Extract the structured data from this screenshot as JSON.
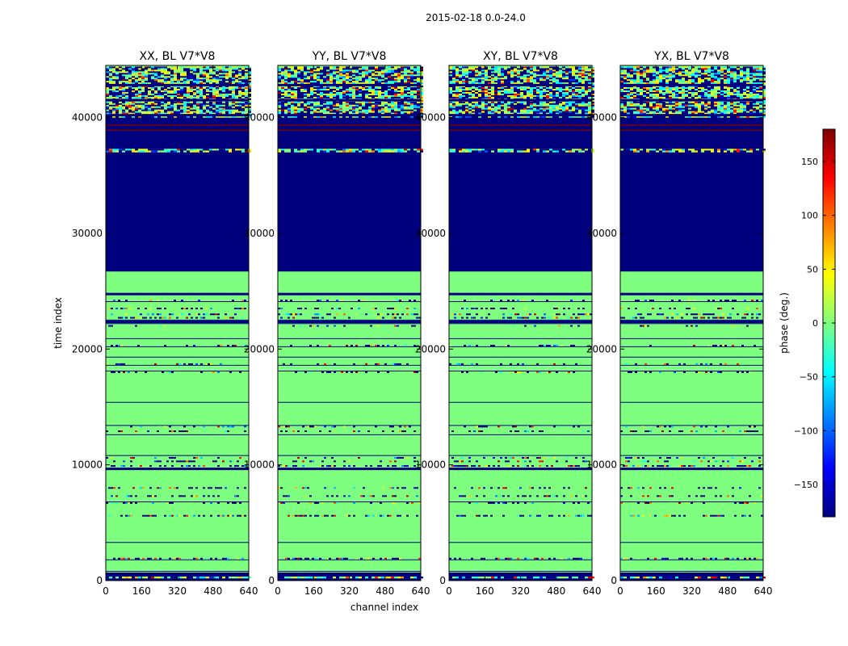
{
  "figure_title": "2015-02-18 0.0-24.0",
  "chart_data": {
    "type": "heatmap",
    "title": "2015-02-18 0.0-24.0",
    "xlabel": "channel index",
    "ylabel": "time index",
    "xlim": [
      0,
      640
    ],
    "ylim": [
      0,
      44500
    ],
    "xticks": [
      0,
      160,
      320,
      480,
      640
    ],
    "yticks": [
      0,
      10000,
      20000,
      30000,
      40000
    ],
    "panels": [
      {
        "title": "XX, BL V7*V8"
      },
      {
        "title": "YY, BL V7*V8"
      },
      {
        "title": "XY, BL V7*V8"
      },
      {
        "title": "YX, BL V7*V8"
      }
    ],
    "colorbar": {
      "label": "phase (deg.)",
      "range": [
        -180,
        180
      ],
      "ticks": [
        -150,
        -100,
        -50,
        0,
        50,
        100,
        150
      ],
      "tick_labels": [
        "−150",
        "−100",
        "−50",
        "0",
        "50",
        "100",
        "150"
      ],
      "colormap": "jet",
      "colors": [
        "#00007f",
        "#0000ff",
        "#0080ff",
        "#00ffff",
        "#7fff7f",
        "#ffff00",
        "#ff8000",
        "#ff0000",
        "#7f0000"
      ]
    },
    "bands": [
      {
        "from": 0,
        "to": 200,
        "phase": -180
      },
      {
        "from": 200,
        "to": 350,
        "phase": "noise"
      },
      {
        "from": 350,
        "to": 700,
        "phase": -180
      },
      {
        "from": 700,
        "to": 26700,
        "phase": 0
      },
      {
        "from": 26700,
        "to": 37000,
        "phase": -180
      },
      {
        "from": 37000,
        "to": 37300,
        "phase": "noise"
      },
      {
        "from": 37300,
        "to": 40000,
        "phase": -180
      },
      {
        "from": 38850,
        "to": 38950,
        "phase": 180
      },
      {
        "from": 39300,
        "to": 39400,
        "phase": 180
      },
      {
        "from": 40000,
        "to": 44400,
        "phase": "noise"
      }
    ],
    "separator_lines": [
      800,
      1800,
      3300,
      6800,
      9700,
      10800,
      12600,
      13400,
      15400,
      18100,
      18600,
      19300,
      20200,
      20900,
      22200,
      22500,
      24100,
      24800
    ],
    "dark_rows": [
      24750,
      22350,
      9650,
      40200,
      41500,
      42800
    ],
    "noisy_rows": [
      {
        "t": 1900,
        "density": 0.5
      },
      {
        "t": 5600,
        "density": 0.5
      },
      {
        "t": 6700,
        "density": 0.3
      },
      {
        "t": 7300,
        "density": 0.4
      },
      {
        "t": 8000,
        "density": 0.3
      },
      {
        "t": 9900,
        "density": 0.5
      },
      {
        "t": 10300,
        "density": 0.35
      },
      {
        "t": 10600,
        "density": 0.3
      },
      {
        "t": 12900,
        "density": 0.35
      },
      {
        "t": 13300,
        "density": 0.3
      },
      {
        "t": 18000,
        "density": 0.3
      },
      {
        "t": 18700,
        "density": 0.3
      },
      {
        "t": 20300,
        "density": 0.25
      },
      {
        "t": 22000,
        "density": 0.15
      },
      {
        "t": 22700,
        "density": 0.4
      },
      {
        "t": 23000,
        "density": 0.4
      },
      {
        "t": 23500,
        "density": 0.3
      },
      {
        "t": 24200,
        "density": 0.3
      }
    ]
  }
}
